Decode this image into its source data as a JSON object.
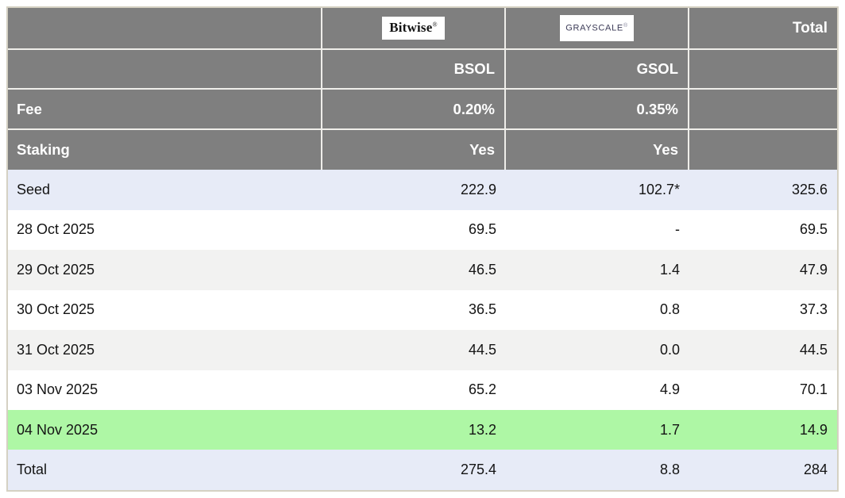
{
  "header": {
    "bitwise_logo": "Bitwise",
    "bitwise_reg": "®",
    "grayscale_logo": "GRAYSCALE",
    "grayscale_reg": "®",
    "total_label": "Total",
    "bsol_ticker": "BSOL",
    "gsol_ticker": "GSOL",
    "fee_label": "Fee",
    "fee_bsol": "0.20%",
    "fee_gsol": "0.35%",
    "staking_label": "Staking",
    "staking_bsol": "Yes",
    "staking_gsol": "Yes"
  },
  "rows": [
    {
      "label": "Seed",
      "bsol": "222.9",
      "gsol": "102.7*",
      "total": "325.6"
    },
    {
      "label": "28 Oct 2025",
      "bsol": "69.5",
      "gsol": "-",
      "total": "69.5"
    },
    {
      "label": "29 Oct 2025",
      "bsol": "46.5",
      "gsol": "1.4",
      "total": "47.9"
    },
    {
      "label": "30 Oct 2025",
      "bsol": "36.5",
      "gsol": "0.8",
      "total": "37.3"
    },
    {
      "label": "31 Oct 2025",
      "bsol": "44.5",
      "gsol": "0.0",
      "total": "44.5"
    },
    {
      "label": "03 Nov 2025",
      "bsol": "65.2",
      "gsol": "4.9",
      "total": "70.1"
    },
    {
      "label": "04 Nov 2025",
      "bsol": "13.2",
      "gsol": "1.7",
      "total": "14.9"
    },
    {
      "label": "Total",
      "bsol": "275.4",
      "gsol": "8.8",
      "total": "284"
    }
  ],
  "colors": {
    "header_gray": "#7f7f7f",
    "row_lavender": "#e7ebf7",
    "row_stripe": "#f2f2f1",
    "row_green": "#aef7a5",
    "outer_border": "#d5d1c3",
    "grayscale_brand": "#3c3b57"
  },
  "chart_data": {
    "type": "table",
    "title": "Solana ETF daily flows: Bitwise BSOL vs Grayscale GSOL ($M)",
    "columns": [
      "",
      "Bitwise BSOL",
      "Grayscale GSOL",
      "Total"
    ],
    "fund_meta": {
      "fee": {
        "bsol": "0.20%",
        "gsol": "0.35%"
      },
      "staking": {
        "bsol": "Yes",
        "gsol": "Yes"
      }
    },
    "categories": [
      "Seed",
      "28 Oct 2025",
      "29 Oct 2025",
      "30 Oct 2025",
      "31 Oct 2025",
      "03 Nov 2025",
      "04 Nov 2025",
      "Total"
    ],
    "series": [
      {
        "name": "BSOL",
        "values": [
          222.9,
          69.5,
          46.5,
          36.5,
          44.5,
          65.2,
          13.2,
          275.4
        ]
      },
      {
        "name": "GSOL",
        "values": [
          102.7,
          null,
          1.4,
          0.8,
          0.0,
          4.9,
          1.7,
          8.8
        ]
      },
      {
        "name": "Total",
        "values": [
          325.6,
          69.5,
          47.9,
          37.3,
          44.5,
          70.1,
          14.9,
          284
        ]
      }
    ],
    "annotations": [
      "102.7* (asterisk on GSOL seed value)",
      "GSOL 28 Oct 2025 shown as '-'",
      "04 Nov 2025 row highlighted green",
      "Seed and Total rows highlighted lavender"
    ]
  }
}
